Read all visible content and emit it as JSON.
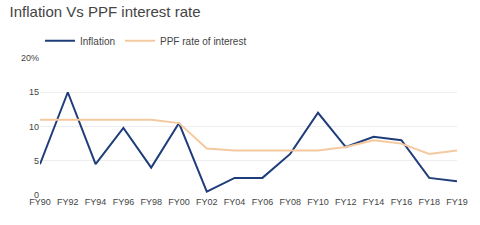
{
  "chart_data": {
    "type": "line",
    "title": "Inflation Vs PPF interest rate",
    "categories": [
      "FY90",
      "FY92",
      "FY94",
      "FY96",
      "FY98",
      "FY00",
      "FY02",
      "FY04",
      "FY06",
      "FY08",
      "FY10",
      "FY12",
      "FY14",
      "FY16",
      "FY18",
      "FY19"
    ],
    "series": [
      {
        "name": "Inflation",
        "color": "#1f3d7a",
        "values": [
          4.5,
          15.0,
          4.5,
          9.8,
          4.0,
          10.5,
          0.5,
          2.5,
          2.5,
          6.0,
          12.0,
          7.0,
          8.5,
          8.0,
          2.5,
          2.0
        ]
      },
      {
        "name": "PPF rate of interest",
        "color": "#f5c9a0",
        "values": [
          11.0,
          11.0,
          11.0,
          11.0,
          11.0,
          10.5,
          6.8,
          6.5,
          6.5,
          6.5,
          6.5,
          7.0,
          8.0,
          7.5,
          6.0,
          6.5
        ]
      }
    ],
    "ylim": [
      0,
      20
    ],
    "yticks": [
      0,
      5,
      10,
      15,
      {
        "value": 20,
        "label": "20%"
      }
    ],
    "grid": true,
    "legend": "top"
  }
}
